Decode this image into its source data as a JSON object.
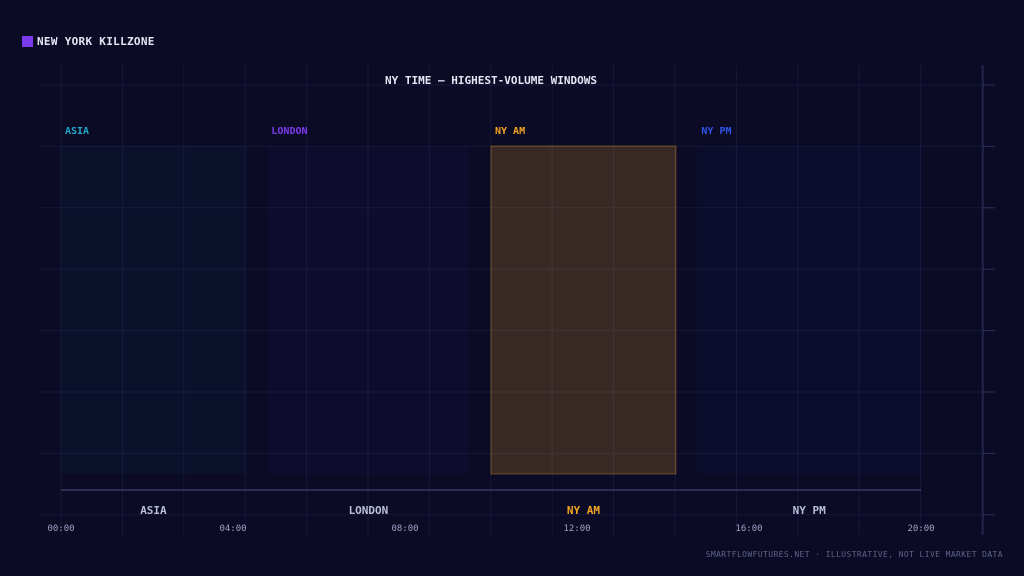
{
  "legend": {
    "label": "NEW YORK KILLZONE",
    "color": "#7c3aed"
  },
  "footer": {
    "text": "SMARTFLOWFUTURES.NET · ILLUSTRATIVE, NOT LIVE MARKET DATA"
  },
  "chart_data": {
    "type": "bar",
    "title": "NY TIME — HIGHEST-VOLUME WINDOWS",
    "xlim": [
      0,
      20
    ],
    "x_ticks": [
      "00:00",
      "04:00",
      "08:00",
      "12:00",
      "16:00",
      "20:00"
    ],
    "highlighted": "NY AM",
    "series": [
      {
        "name": "ASIA",
        "start": 0,
        "end": 4.3,
        "color": "#22a6c8",
        "label_color": "#b9bfd8"
      },
      {
        "name": "LONDON",
        "start": 4.8,
        "end": 9.5,
        "color": "#7c3aed",
        "label_color": "#b9bfd8"
      },
      {
        "name": "NY AM",
        "start": 10,
        "end": 14.3,
        "color": "#f5a623",
        "label_color": "#f5a623"
      },
      {
        "name": "NY PM",
        "start": 14.8,
        "end": 20,
        "color": "#2f54eb",
        "label_color": "#b9bfd8"
      }
    ],
    "grid": true,
    "legend_position": "top-left"
  }
}
